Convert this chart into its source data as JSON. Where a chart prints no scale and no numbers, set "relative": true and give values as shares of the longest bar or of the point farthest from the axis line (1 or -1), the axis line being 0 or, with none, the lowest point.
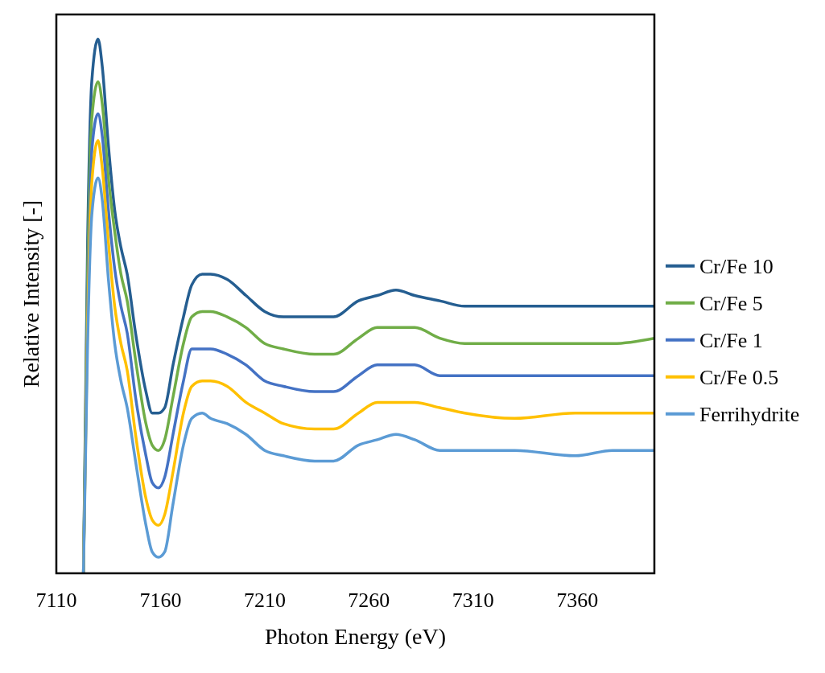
{
  "chart_data": {
    "type": "line",
    "relative": true,
    "xlabel": "Photon Energy (eV)",
    "ylabel": "Relative Intensity [-]",
    "xlim": [
      7110,
      7397
    ],
    "xticks": [
      7110,
      7160,
      7210,
      7260,
      7310,
      7360
    ],
    "legend": "right",
    "x": [
      7123,
      7125,
      7127,
      7130,
      7132,
      7135,
      7138,
      7141,
      7144,
      7148,
      7153,
      7156,
      7159,
      7162,
      7166,
      7171,
      7175,
      7180,
      7184,
      7192,
      7201,
      7210,
      7219,
      7234,
      7243,
      7255,
      7264,
      7273,
      7282,
      7294,
      7306,
      7330,
      7359,
      7377,
      7397
    ],
    "series": [
      {
        "name": "Cr/Fe 10",
        "color": "#255e91",
        "values": [
          0,
          0.62,
          0.92,
          1.0,
          0.95,
          0.8,
          0.68,
          0.61,
          0.56,
          0.45,
          0.34,
          0.3,
          0.3,
          0.31,
          0.39,
          0.48,
          0.54,
          0.56,
          0.56,
          0.55,
          0.52,
          0.49,
          0.48,
          0.48,
          0.48,
          0.51,
          0.52,
          0.53,
          0.52,
          0.51,
          0.5,
          0.5,
          0.5,
          0.5,
          0.5
        ]
      },
      {
        "name": "Cr/Fe 5",
        "color": "#70ad47",
        "values": [
          0,
          0.56,
          0.85,
          0.92,
          0.88,
          0.74,
          0.64,
          0.56,
          0.51,
          0.4,
          0.28,
          0.24,
          0.23,
          0.25,
          0.33,
          0.43,
          0.48,
          0.49,
          0.49,
          0.48,
          0.46,
          0.43,
          0.42,
          0.41,
          0.41,
          0.44,
          0.46,
          0.46,
          0.46,
          0.44,
          0.43,
          0.43,
          0.43,
          0.43,
          0.44
        ]
      },
      {
        "name": "Cr/Fe 1",
        "color": "#4472c4",
        "values": [
          0,
          0.5,
          0.79,
          0.86,
          0.82,
          0.68,
          0.57,
          0.5,
          0.45,
          0.33,
          0.22,
          0.17,
          0.16,
          0.18,
          0.26,
          0.36,
          0.42,
          0.42,
          0.42,
          0.41,
          0.39,
          0.36,
          0.35,
          0.34,
          0.34,
          0.37,
          0.39,
          0.39,
          0.39,
          0.37,
          0.37,
          0.37,
          0.37,
          0.37,
          0.37
        ]
      },
      {
        "name": "Cr/Fe 0.5",
        "color": "#ffc000",
        "values": [
          0,
          0.47,
          0.73,
          0.81,
          0.76,
          0.62,
          0.5,
          0.43,
          0.38,
          0.26,
          0.14,
          0.1,
          0.09,
          0.11,
          0.19,
          0.3,
          0.35,
          0.36,
          0.36,
          0.35,
          0.32,
          0.3,
          0.28,
          0.27,
          0.27,
          0.3,
          0.32,
          0.32,
          0.32,
          0.31,
          0.3,
          0.29,
          0.3,
          0.3,
          0.3
        ]
      },
      {
        "name": "Ferrihydrite",
        "color": "#5b9bd5",
        "values": [
          0,
          0.43,
          0.67,
          0.74,
          0.7,
          0.55,
          0.43,
          0.36,
          0.31,
          0.21,
          0.09,
          0.04,
          0.03,
          0.04,
          0.13,
          0.24,
          0.29,
          0.3,
          0.29,
          0.28,
          0.26,
          0.23,
          0.22,
          0.21,
          0.21,
          0.24,
          0.25,
          0.26,
          0.25,
          0.23,
          0.23,
          0.23,
          0.22,
          0.23,
          0.23
        ]
      }
    ]
  }
}
